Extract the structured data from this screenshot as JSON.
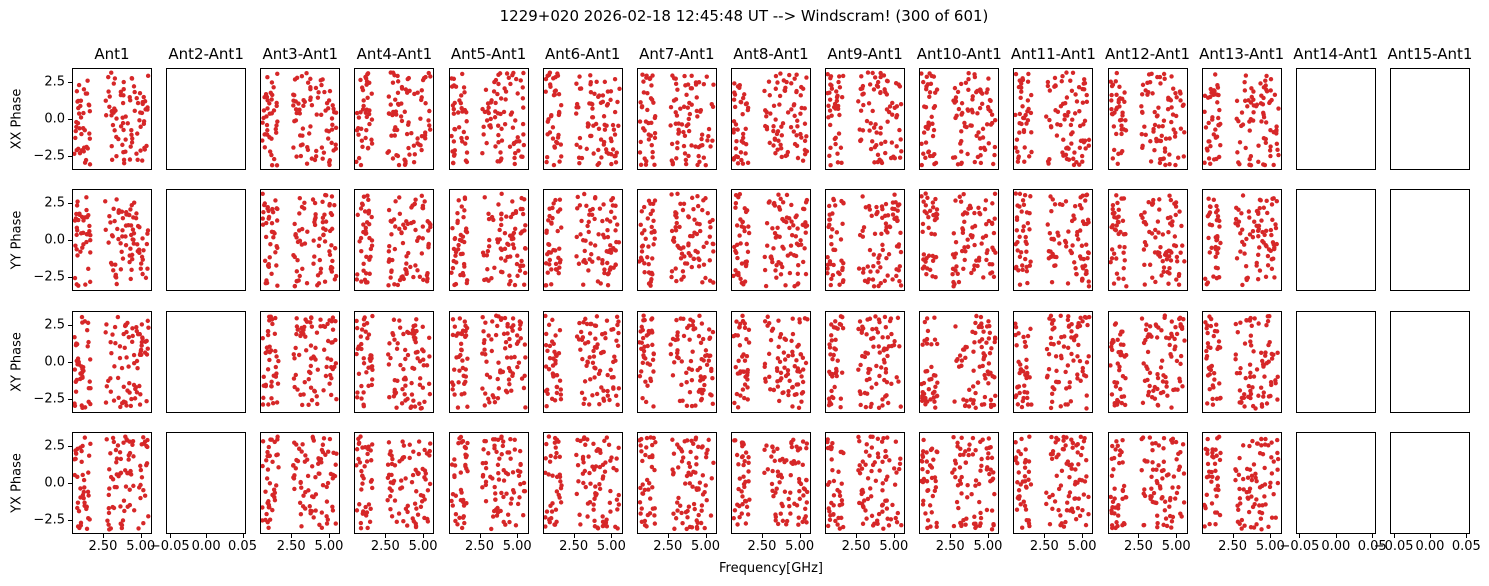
{
  "chart_data": {
    "type": "scatter",
    "title": "1229+020 2026-02-18 12:45:48 UT --> Windscram! (300 of 601)",
    "xlabel": "Frequency[GHz]",
    "rows": [
      "XX Phase",
      "YY Phase",
      "XY Phase",
      "YX Phase"
    ],
    "columns": [
      "Ant1",
      "Ant2-Ant1",
      "Ant3-Ant1",
      "Ant4-Ant1",
      "Ant5-Ant1",
      "Ant6-Ant1",
      "Ant7-Ant1",
      "Ant8-Ant1",
      "Ant9-Ant1",
      "Ant10-Ant1",
      "Ant11-Ant1",
      "Ant12-Ant1",
      "Ant13-Ant1",
      "Ant14-Ant1",
      "Ant15-Ant1"
    ],
    "empty_columns": [
      "Ant2-Ant1",
      "Ant14-Ant1",
      "Ant15-Ant1"
    ],
    "marker_color": "#d62728",
    "marker_radius_px": 2.2,
    "ylim": [
      -3.45,
      3.45
    ],
    "yticks": [
      2.5,
      0.0,
      -2.5
    ],
    "ytick_labels": [
      "2.5",
      "0.0",
      "−2.5"
    ],
    "filled_axes": {
      "xlim": [
        0.45,
        5.75
      ],
      "xticks": [
        2.5,
        5.0
      ],
      "xtick_labels": [
        "2.50",
        "5.00"
      ]
    },
    "empty_axes": {
      "xlim": [
        -0.055,
        0.055
      ],
      "xticks": [
        -0.05,
        0.0,
        0.05
      ],
      "xtick_labels": [
        "−0.05",
        "0.00",
        "0.05"
      ]
    },
    "frequency_bands_ghz": [
      [
        0.6,
        1.68
      ],
      [
        2.65,
        5.52
      ]
    ],
    "points_per_band": [
      40,
      78
    ],
    "phase_range_rad": [
      -3.141592653589793,
      3.141592653589793
    ],
    "legend": null,
    "grid_on": false
  }
}
